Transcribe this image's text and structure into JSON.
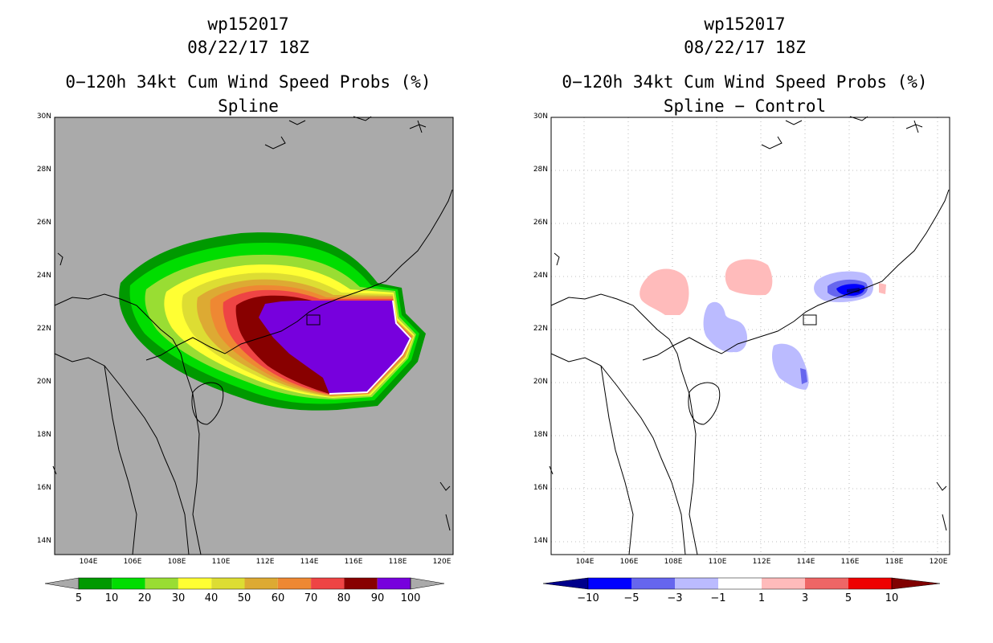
{
  "left_panel": {
    "storm": "wp152017",
    "datetime": "08/22/17 18Z",
    "title": "0−120h 34kt Cum Wind Speed Probs (%)",
    "subtitle": "Spline",
    "lat_labels": [
      "30N",
      "28N",
      "26N",
      "24N",
      "22N",
      "20N",
      "18N",
      "16N",
      "14N"
    ],
    "lon_labels": [
      "104E",
      "106E",
      "108E",
      "110E",
      "112E",
      "114E",
      "116E",
      "118E",
      "120E"
    ],
    "colorbar": {
      "labels": [
        "5",
        "10",
        "20",
        "30",
        "40",
        "50",
        "60",
        "70",
        "80",
        "90",
        "100"
      ],
      "colors": [
        "#009900",
        "#00dd00",
        "#99dd33",
        "#ffff33",
        "#dddd33",
        "#ddaa33",
        "#ee8833",
        "#ee4444",
        "#880000",
        "#7700dd"
      ],
      "end_color": "#aaaaaa"
    },
    "map_background": "#aaaaaa"
  },
  "right_panel": {
    "storm": "wp152017",
    "datetime": "08/22/17 18Z",
    "title": "0−120h 34kt Cum Wind Speed Probs (%)",
    "subtitle": "Spline − Control",
    "lat_labels": [
      "30N",
      "28N",
      "26N",
      "24N",
      "22N",
      "20N",
      "18N",
      "16N",
      "14N"
    ],
    "lon_labels": [
      "104E",
      "106E",
      "108E",
      "110E",
      "112E",
      "114E",
      "116E",
      "118E",
      "120E"
    ],
    "colorbar": {
      "labels": [
        "−10",
        "−5",
        "−3",
        "−1",
        "1",
        "3",
        "5",
        "10"
      ],
      "colors": [
        "#0000ff",
        "#6666ee",
        "#bbbbff",
        "#ffffff",
        "#ffbbbb",
        "#ee6666",
        "#ee0000"
      ],
      "left_end_color": "#00008b",
      "right_end_color": "#800000"
    },
    "map_background": "#ffffff"
  }
}
